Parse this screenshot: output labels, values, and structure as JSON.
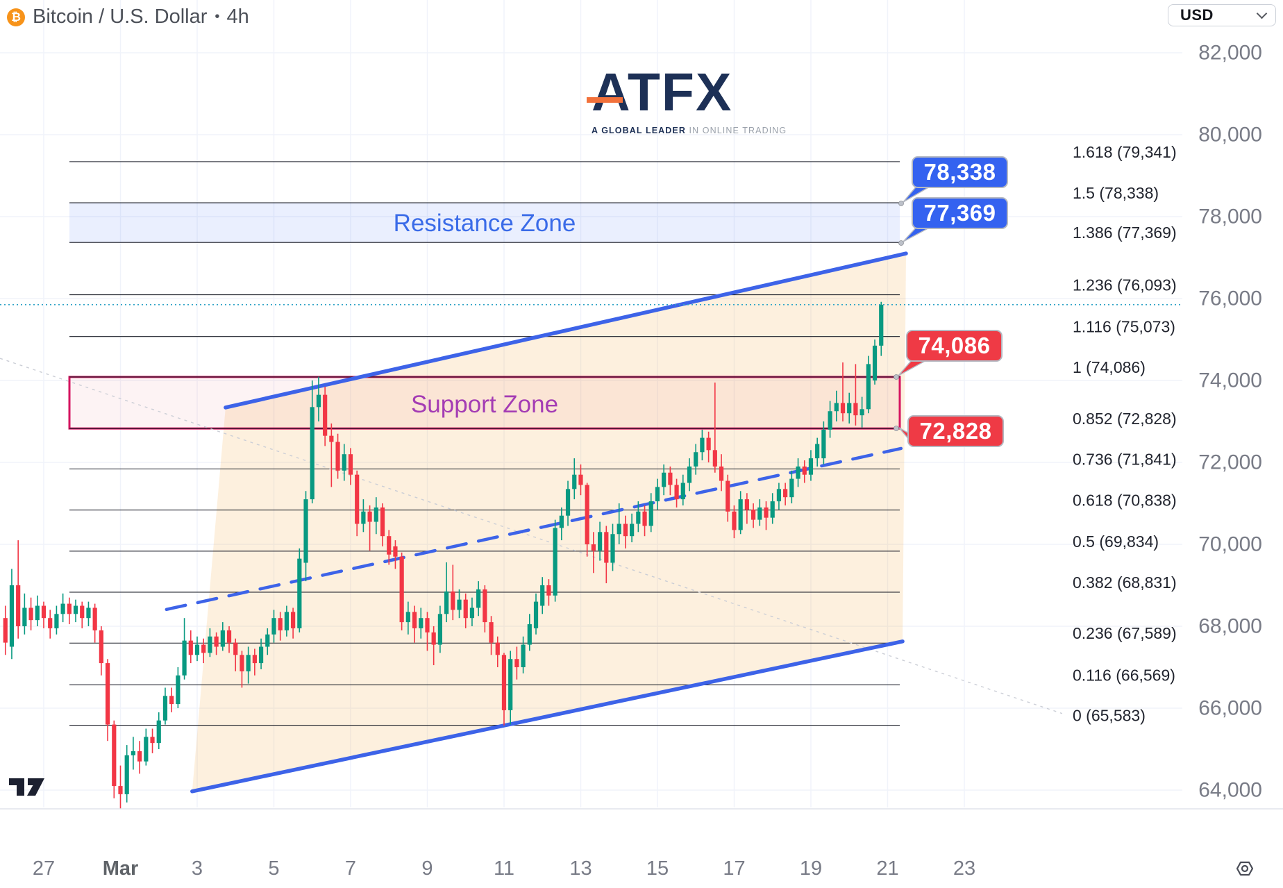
{
  "header": {
    "title": "Bitcoin / U.S. Dollar",
    "separator": "•",
    "interval": "4h",
    "symbol_icon": "bitcoin-icon"
  },
  "currency_selector": {
    "value": "USD"
  },
  "watermark": {
    "brand": "ATFX",
    "tagline_bold": "A GLOBAL LEADER",
    "tagline_rest": " IN ONLINE TRADING"
  },
  "zones_text": {
    "resistance": "Resistance Zone",
    "support": "Support Zone"
  },
  "callouts": [
    {
      "text": "78,338",
      "color": "blue",
      "points_to_price": 78338
    },
    {
      "text": "77,369",
      "color": "blue",
      "points_to_price": 77369
    },
    {
      "text": "74,086",
      "color": "red",
      "points_to_price": 74086
    },
    {
      "text": "72,828",
      "color": "red",
      "points_to_price": 72828
    }
  ],
  "colors": {
    "candle_up": "#089981",
    "candle_down": "#F23645",
    "channel_blue": "#3D63E8",
    "grid": "#F0F3FA",
    "fib_line": "#1A1D27",
    "axis_text": "#787B86",
    "fib_text": "#21242E",
    "resistance_fill": "rgba(61,107,244,0.11)",
    "support_fill": "rgba(222,82,95,0.07)",
    "support_border": "#D5145F",
    "channel_fill": "rgba(240,160,48,0.16)",
    "current_price_line": "#2FA3C7",
    "trendline_gray": "#CBCED6",
    "callout_blue": "#3462F0",
    "callout_red": "#EF3A45",
    "bitcoin_orange": "#F7931A"
  },
  "chart_data": {
    "type": "candlestick",
    "title": "Bitcoin / U.S. Dollar 4h",
    "ylabel": "USD",
    "ylim": [
      63000,
      83000
    ],
    "grid": true,
    "y_axis": [
      {
        "value": 82000,
        "label": "82,000"
      },
      {
        "value": 80000,
        "label": "80,000"
      },
      {
        "value": 78000,
        "label": "78,000"
      },
      {
        "value": 76000,
        "label": "76,000"
      },
      {
        "value": 74000,
        "label": "74,000"
      },
      {
        "value": 72000,
        "label": "72,000"
      },
      {
        "value": 70000,
        "label": "70,000"
      },
      {
        "value": 68000,
        "label": "68,000"
      },
      {
        "value": 66000,
        "label": "66,000"
      },
      {
        "value": 64000,
        "label": "64,000"
      }
    ],
    "x_axis": [
      {
        "label": "27",
        "day": 0
      },
      {
        "label": "Mar",
        "day": 2,
        "emphasis": true
      },
      {
        "label": "3",
        "day": 4
      },
      {
        "label": "5",
        "day": 6
      },
      {
        "label": "7",
        "day": 8
      },
      {
        "label": "9",
        "day": 10
      },
      {
        "label": "11",
        "day": 12
      },
      {
        "label": "13",
        "day": 14
      },
      {
        "label": "15",
        "day": 16
      },
      {
        "label": "17",
        "day": 18
      },
      {
        "label": "19",
        "day": 20
      },
      {
        "label": "21",
        "day": 22
      },
      {
        "label": "23",
        "day": 24
      }
    ],
    "fib_levels": [
      {
        "ratio": "1.618",
        "price": 79341,
        "label": "1.618 (79,341)"
      },
      {
        "ratio": "1.5",
        "price": 78338,
        "label": "1.5 (78,338)"
      },
      {
        "ratio": "1.386",
        "price": 77369,
        "label": "1.386 (77,369)"
      },
      {
        "ratio": "1.236",
        "price": 76093,
        "label": "1.236 (76,093)"
      },
      {
        "ratio": "1.116",
        "price": 75073,
        "label": "1.116 (75,073)"
      },
      {
        "ratio": "1",
        "price": 74086,
        "label": "1 (74,086)"
      },
      {
        "ratio": "0.852",
        "price": 72828,
        "label": "0.852 (72,828)"
      },
      {
        "ratio": "0.736",
        "price": 71841,
        "label": "0.736 (71,841)"
      },
      {
        "ratio": "0.618",
        "price": 70838,
        "label": "0.618 (70,838)"
      },
      {
        "ratio": "0.5",
        "price": 69834,
        "label": "0.5 (69,834)"
      },
      {
        "ratio": "0.382",
        "price": 68831,
        "label": "0.382 (68,831)"
      },
      {
        "ratio": "0.236",
        "price": 67589,
        "label": "0.236 (67,589)"
      },
      {
        "ratio": "0.116",
        "price": 66569,
        "label": "0.116 (66,569)"
      },
      {
        "ratio": "0",
        "price": 65583,
        "label": "0 (65,583)"
      }
    ],
    "zones": [
      {
        "name": "Resistance Zone",
        "from": 77369,
        "to": 78338
      },
      {
        "name": "Support Zone",
        "from": 72828,
        "to": 74086
      }
    ],
    "channel": {
      "upper": [
        {
          "day": 4.74,
          "price": 73340
        },
        {
          "day": 22.48,
          "price": 77100
        }
      ],
      "lower": [
        {
          "day": 3.87,
          "price": 63970
        },
        {
          "day": 22.39,
          "price": 67630
        }
      ],
      "midline": [
        {
          "day": 3.2,
          "price": 68410
        },
        {
          "day": 22.35,
          "price": 72340
        }
      ]
    },
    "gray_trendline": [
      {
        "day": -1.14,
        "price": 74540
      },
      {
        "day": 26.55,
        "price": 65870
      }
    ],
    "current_price": 75850,
    "candles_per_day": 6,
    "first_candle_day": -1,
    "ohlc_unit": "thousand USD",
    "candles": [
      [
        68.2,
        68.5,
        67.3,
        67.6
      ],
      [
        67.5,
        69.4,
        67.2,
        69.0
      ],
      [
        69.0,
        70.1,
        67.7,
        68.0
      ],
      [
        68.0,
        68.8,
        67.8,
        68.45
      ],
      [
        68.45,
        68.7,
        67.9,
        68.15
      ],
      [
        68.15,
        68.75,
        68.0,
        68.5
      ],
      [
        68.5,
        68.6,
        67.95,
        68.2
      ],
      [
        68.2,
        68.4,
        67.7,
        67.95
      ],
      [
        67.95,
        68.5,
        67.8,
        68.3
      ],
      [
        68.3,
        68.8,
        68.1,
        68.55
      ],
      [
        68.55,
        68.7,
        68.05,
        68.3
      ],
      [
        68.3,
        68.65,
        68.1,
        68.5
      ],
      [
        68.5,
        68.6,
        67.95,
        68.2
      ],
      [
        68.2,
        68.6,
        68.0,
        68.45
      ],
      [
        68.45,
        68.55,
        67.6,
        67.9
      ],
      [
        67.9,
        68.0,
        66.8,
        67.1
      ],
      [
        67.1,
        67.2,
        65.2,
        65.6
      ],
      [
        65.6,
        65.7,
        63.8,
        64.1
      ],
      [
        64.1,
        64.6,
        63.55,
        63.9
      ],
      [
        63.9,
        65.1,
        63.7,
        64.85
      ],
      [
        64.85,
        65.3,
        64.5,
        64.95
      ],
      [
        64.95,
        65.2,
        64.4,
        64.7
      ],
      [
        64.7,
        65.5,
        64.6,
        65.3
      ],
      [
        65.3,
        65.5,
        64.9,
        65.15
      ],
      [
        65.15,
        65.9,
        65.0,
        65.7
      ],
      [
        65.7,
        66.5,
        65.6,
        66.3
      ],
      [
        66.3,
        66.5,
        65.9,
        66.1
      ],
      [
        66.1,
        67.0,
        66.0,
        66.8
      ],
      [
        66.8,
        68.2,
        66.7,
        67.65
      ],
      [
        67.65,
        67.9,
        67.1,
        67.3
      ],
      [
        67.3,
        67.75,
        67.15,
        67.55
      ],
      [
        67.55,
        67.7,
        67.1,
        67.35
      ],
      [
        67.35,
        67.95,
        67.25,
        67.75
      ],
      [
        67.75,
        67.85,
        67.3,
        67.5
      ],
      [
        67.5,
        68.1,
        67.4,
        67.9
      ],
      [
        67.9,
        68.0,
        67.35,
        67.6
      ],
      [
        67.6,
        67.7,
        66.9,
        67.3
      ],
      [
        67.3,
        67.4,
        66.5,
        66.9
      ],
      [
        66.9,
        67.5,
        66.6,
        67.3
      ],
      [
        67.3,
        67.45,
        66.8,
        67.1
      ],
      [
        67.1,
        67.7,
        66.95,
        67.5
      ],
      [
        67.5,
        67.95,
        67.3,
        67.8
      ],
      [
        67.8,
        68.4,
        67.6,
        68.2
      ],
      [
        68.2,
        68.35,
        67.65,
        67.9
      ],
      [
        67.9,
        68.5,
        67.75,
        68.35
      ],
      [
        68.35,
        68.45,
        67.7,
        67.95
      ],
      [
        67.95,
        69.9,
        67.85,
        69.65
      ],
      [
        69.55,
        71.3,
        69.1,
        71.1
      ],
      [
        71.1,
        74.0,
        71.0,
        73.35
      ],
      [
        73.35,
        74.09,
        73.0,
        73.65
      ],
      [
        73.65,
        73.85,
        72.4,
        72.65
      ],
      [
        72.65,
        72.95,
        71.4,
        72.5
      ],
      [
        72.5,
        72.7,
        71.6,
        71.8
      ],
      [
        71.8,
        72.45,
        71.55,
        72.2
      ],
      [
        72.2,
        72.35,
        71.45,
        71.7
      ],
      [
        71.7,
        71.8,
        70.2,
        70.5
      ],
      [
        70.5,
        71.1,
        70.3,
        70.8
      ],
      [
        70.8,
        70.95,
        69.85,
        70.55
      ],
      [
        70.55,
        71.15,
        70.25,
        70.9
      ],
      [
        70.9,
        71.0,
        69.95,
        70.2
      ],
      [
        70.2,
        70.35,
        69.5,
        69.75
      ],
      [
        69.95,
        70.1,
        69.4,
        69.7
      ],
      [
        69.7,
        69.8,
        67.9,
        68.1
      ],
      [
        68.1,
        68.6,
        67.8,
        68.35
      ],
      [
        68.35,
        68.5,
        67.6,
        67.95
      ],
      [
        67.95,
        68.45,
        67.7,
        68.2
      ],
      [
        68.2,
        68.35,
        67.4,
        67.85
      ],
      [
        67.85,
        68.0,
        67.05,
        67.55
      ],
      [
        67.55,
        68.5,
        67.35,
        68.3
      ],
      [
        68.3,
        69.56,
        68.1,
        68.85
      ],
      [
        68.85,
        69.5,
        68.15,
        68.4
      ],
      [
        68.4,
        68.9,
        68.2,
        68.65
      ],
      [
        68.65,
        68.8,
        67.95,
        68.2
      ],
      [
        68.2,
        68.7,
        68.0,
        68.45
      ],
      [
        68.45,
        69.1,
        68.25,
        68.9
      ],
      [
        68.9,
        69.0,
        67.85,
        68.1
      ],
      [
        68.1,
        68.25,
        67.3,
        67.6
      ],
      [
        67.6,
        67.75,
        67.0,
        67.3
      ],
      [
        67.3,
        67.35,
        65.58,
        65.95
      ],
      [
        65.95,
        67.4,
        65.6,
        67.2
      ],
      [
        67.2,
        67.5,
        66.7,
        67.0
      ],
      [
        67.0,
        67.75,
        66.85,
        67.55
      ],
      [
        67.55,
        68.3,
        67.4,
        68.05
      ],
      [
        67.95,
        68.8,
        67.8,
        68.6
      ],
      [
        68.5,
        69.2,
        68.3,
        69.0
      ],
      [
        69.0,
        69.15,
        68.5,
        68.75
      ],
      [
        68.75,
        70.6,
        68.6,
        70.4
      ],
      [
        70.4,
        70.9,
        70.1,
        70.7
      ],
      [
        70.7,
        71.55,
        70.45,
        71.35
      ],
      [
        71.35,
        72.1,
        71.1,
        71.7
      ],
      [
        71.7,
        71.95,
        71.2,
        71.45
      ],
      [
        71.45,
        71.5,
        69.7,
        70.0
      ],
      [
        70.0,
        70.3,
        69.3,
        69.85
      ],
      [
        69.85,
        70.55,
        69.6,
        70.3
      ],
      [
        70.3,
        70.45,
        69.05,
        69.55
      ],
      [
        69.55,
        70.5,
        69.35,
        70.25
      ],
      [
        70.25,
        71.0,
        70.0,
        70.5
      ],
      [
        70.5,
        70.7,
        69.9,
        70.2
      ],
      [
        70.2,
        70.75,
        70.05,
        70.5
      ],
      [
        70.5,
        71.05,
        70.3,
        70.8
      ],
      [
        70.8,
        70.95,
        70.2,
        70.45
      ],
      [
        70.45,
        71.25,
        70.3,
        71.05
      ],
      [
        71.05,
        71.6,
        70.85,
        71.4
      ],
      [
        71.4,
        71.95,
        71.2,
        71.75
      ],
      [
        71.75,
        71.9,
        71.2,
        71.45
      ],
      [
        71.45,
        71.6,
        70.9,
        71.1
      ],
      [
        71.1,
        71.7,
        70.95,
        71.5
      ],
      [
        71.5,
        72.1,
        71.3,
        71.9
      ],
      [
        71.9,
        72.45,
        71.7,
        72.25
      ],
      [
        72.25,
        72.8,
        72.05,
        72.6
      ],
      [
        72.6,
        72.75,
        72.0,
        72.3
      ],
      [
        72.3,
        73.95,
        71.75,
        71.9
      ],
      [
        71.9,
        72.2,
        71.3,
        71.55
      ],
      [
        71.55,
        71.7,
        70.55,
        70.8
      ],
      [
        70.8,
        70.95,
        70.15,
        70.35
      ],
      [
        70.35,
        71.3,
        70.25,
        71.1
      ],
      [
        71.1,
        71.25,
        70.5,
        70.85
      ],
      [
        70.85,
        71.0,
        70.4,
        70.6
      ],
      [
        70.6,
        71.1,
        70.45,
        70.9
      ],
      [
        70.9,
        71.05,
        70.35,
        70.65
      ],
      [
        70.65,
        71.25,
        70.5,
        71.05
      ],
      [
        71.05,
        71.5,
        70.85,
        71.35
      ],
      [
        71.35,
        71.5,
        70.95,
        71.15
      ],
      [
        71.15,
        71.8,
        71.0,
        71.6
      ],
      [
        71.6,
        72.1,
        71.4,
        71.9
      ],
      [
        71.9,
        72.05,
        71.5,
        71.7
      ],
      [
        71.7,
        72.3,
        71.55,
        72.1
      ],
      [
        72.1,
        72.6,
        71.9,
        72.45
      ],
      [
        72.1,
        73.0,
        71.95,
        72.8
      ],
      [
        72.8,
        73.5,
        72.6,
        73.25
      ],
      [
        73.25,
        73.75,
        73.0,
        73.45
      ],
      [
        73.45,
        74.44,
        73.0,
        73.2
      ],
      [
        73.2,
        73.7,
        72.95,
        73.45
      ],
      [
        73.45,
        74.4,
        72.9,
        73.15
      ],
      [
        73.15,
        73.6,
        72.85,
        73.3
      ],
      [
        73.3,
        74.6,
        73.2,
        74.4
      ],
      [
        74.0,
        75.0,
        73.9,
        74.85
      ],
      [
        74.85,
        75.92,
        74.6,
        75.85
      ]
    ]
  }
}
